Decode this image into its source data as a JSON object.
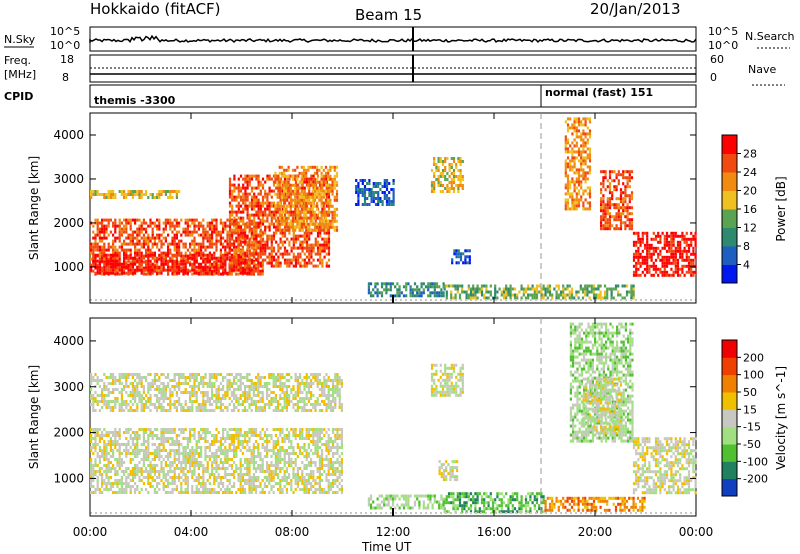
{
  "header": {
    "station": "Hokkaido (fitACF)",
    "beam": "Beam 15",
    "date": "20/Jan/2013"
  },
  "top_panels": {
    "nsky_label": "N.Sky",
    "nsky_ticks": [
      "10^5",
      "10^0"
    ],
    "nsearch_label": "N.Search",
    "nsearch_ticks": [
      "10^5",
      "10^0"
    ],
    "freq_label_1": "Freq.",
    "freq_label_2": "[MHz]",
    "freq_ticks": [
      "18",
      "8"
    ],
    "nave_label": "Nave",
    "nave_ticks": [
      "60",
      "0"
    ],
    "cpid_label": "CPID",
    "cpid_text_1": "themis -3300",
    "cpid_text_2": "normal (fast) 151"
  },
  "chart_data": [
    {
      "type": "heatmap",
      "title": "",
      "xlabel": "Time UT",
      "ylabel": "Slant Range [km]",
      "xlim": [
        "00:00",
        "24:00"
      ],
      "ylim": [
        180,
        4500
      ],
      "y_ticks": [
        "4000",
        "3000",
        "2000",
        "1000"
      ],
      "colorbar": {
        "label": "Power [dB]",
        "ticks": [
          "28",
          "24",
          "20",
          "16",
          "12",
          "8",
          "4"
        ],
        "colors": [
          "#0018f0",
          "#1c5fc0",
          "#2e8a6e",
          "#5aa350",
          "#f0c020",
          "#f08a10",
          "#f04a10",
          "#ff0000"
        ]
      },
      "regions": [
        {
          "t0": 0.0,
          "t1": 6.8,
          "r0": 850,
          "r1": 2100,
          "level": 6
        },
        {
          "t0": 0.0,
          "t1": 6.5,
          "r0": 850,
          "r1": 1300,
          "level": 7
        },
        {
          "t0": 0.0,
          "t1": 3.5,
          "r0": 2600,
          "r1": 2750,
          "level": 4
        },
        {
          "t0": 5.5,
          "t1": 9.5,
          "r0": 1000,
          "r1": 3100,
          "level": 6
        },
        {
          "t0": 7.3,
          "t1": 9.8,
          "r0": 1800,
          "r1": 3300,
          "level": 5
        },
        {
          "t0": 10.5,
          "t1": 12.0,
          "r0": 2400,
          "r1": 3000,
          "level": 1
        },
        {
          "t0": 13.5,
          "t1": 14.8,
          "r0": 2700,
          "r1": 3500,
          "level": 4
        },
        {
          "t0": 14.0,
          "t1": 18.0,
          "r0": 300,
          "r1": 600,
          "level": 3
        },
        {
          "t0": 11.0,
          "t1": 14.0,
          "r0": 350,
          "r1": 650,
          "level": 2
        },
        {
          "t0": 14.3,
          "t1": 15.0,
          "r0": 1100,
          "r1": 1400,
          "level": 1
        },
        {
          "t0": 18.8,
          "t1": 19.8,
          "r0": 2300,
          "r1": 4400,
          "level": 5
        },
        {
          "t0": 20.2,
          "t1": 21.5,
          "r0": 1900,
          "r1": 3200,
          "level": 6
        },
        {
          "t0": 21.5,
          "t1": 24.0,
          "r0": 800,
          "r1": 1800,
          "level": 7
        },
        {
          "t0": 18.0,
          "t1": 21.5,
          "r0": 300,
          "r1": 600,
          "level": 3
        }
      ]
    },
    {
      "type": "heatmap",
      "title": "",
      "xlabel": "Time UT",
      "ylabel": "Slant Range [km]",
      "xlim": [
        "00:00",
        "24:00"
      ],
      "ylim": [
        180,
        4500
      ],
      "y_ticks": [
        "4000",
        "3000",
        "2000",
        "1000"
      ],
      "colorbar": {
        "label": "Velocity [m s^-1]",
        "ticks": [
          "200",
          "100",
          "50",
          "15",
          "-15",
          "-50",
          "-100",
          "-200"
        ],
        "colors": [
          "#1040c0",
          "#208060",
          "#50c030",
          "#a0e080",
          "#c8c8c0",
          "#f0c000",
          "#f08000",
          "#f04000",
          "#f00000"
        ]
      },
      "regions": [
        {
          "t0": 0.0,
          "t1": 10.0,
          "r0": 700,
          "r1": 2100,
          "level": 4
        },
        {
          "t0": 0.0,
          "t1": 10.0,
          "r0": 2500,
          "r1": 3300,
          "level": 4
        },
        {
          "t0": 13.5,
          "t1": 14.8,
          "r0": 2800,
          "r1": 3500,
          "level": 4
        },
        {
          "t0": 13.8,
          "t1": 14.5,
          "r0": 1000,
          "r1": 1400,
          "level": 4
        },
        {
          "t0": 14.0,
          "t1": 18.0,
          "r0": 300,
          "r1": 700,
          "level": 2
        },
        {
          "t0": 11.0,
          "t1": 14.0,
          "r0": 350,
          "r1": 650,
          "level": 3
        },
        {
          "t0": 19.0,
          "t1": 21.5,
          "r0": 1800,
          "r1": 4400,
          "level": 3
        },
        {
          "t0": 19.5,
          "t1": 21.0,
          "r0": 2000,
          "r1": 3200,
          "level": 4
        },
        {
          "t0": 21.5,
          "t1": 24.0,
          "r0": 700,
          "r1": 1900,
          "level": 4
        },
        {
          "t0": 18.0,
          "t1": 22.0,
          "r0": 300,
          "r1": 600,
          "level": 6
        }
      ]
    }
  ],
  "x_ticks": [
    "00:00",
    "04:00",
    "08:00",
    "12:00",
    "16:00",
    "20:00",
    "00:00"
  ],
  "x_axis_label": "Time UT"
}
